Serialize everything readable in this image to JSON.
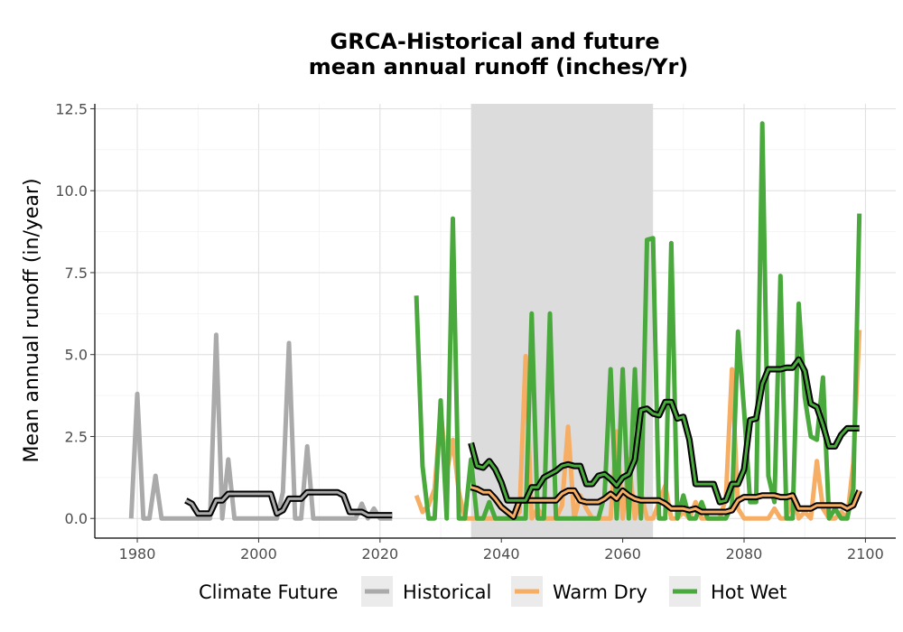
{
  "chart_data": {
    "type": "line",
    "title_line1": "GRCA-Historical and future",
    "title_line2": "mean annual runoff (inches/Yr)",
    "xlabel": "",
    "ylabel": "Mean annual runoff (in/year)",
    "xlim": [
      1973,
      2105
    ],
    "ylim": [
      -0.6,
      12.65
    ],
    "x_ticks": [
      1980,
      2000,
      2020,
      2040,
      2060,
      2080,
      2100
    ],
    "y_ticks": [
      0,
      2.5,
      5,
      7.5,
      10,
      12.5
    ],
    "y_tick_labels": [
      "0.0",
      "2.5",
      "5.0",
      "7.5",
      "10.0",
      "12.5"
    ],
    "grid": true,
    "shaded_period": [
      2035,
      2065
    ],
    "legend": {
      "title": "Climate Future",
      "position": "bottom",
      "entries": [
        {
          "label": "Historical",
          "color": "#aaaaaa"
        },
        {
          "label": "Warm Dry",
          "color": "#f6ad64"
        },
        {
          "label": "Hot Wet",
          "color": "#4aa93c"
        }
      ]
    },
    "series": [
      {
        "name": "Historical",
        "color": "#aaaaaa",
        "x": [
          1979,
          1980,
          1981,
          1982,
          1983,
          1984,
          1985,
          1986,
          1987,
          1988,
          1989,
          1990,
          1991,
          1992,
          1993,
          1994,
          1995,
          1996,
          1997,
          1998,
          1999,
          2000,
          2001,
          2002,
          2003,
          2004,
          2005,
          2006,
          2007,
          2008,
          2009,
          2010,
          2011,
          2012,
          2013,
          2014,
          2015,
          2016,
          2017,
          2018,
          2019,
          2020,
          2021,
          2022
        ],
        "y": [
          0,
          3.8,
          0,
          0,
          1.3,
          0,
          0,
          0,
          0,
          0,
          0,
          0,
          0,
          0,
          5.6,
          0,
          1.8,
          0,
          0,
          0,
          0,
          0,
          0,
          0,
          0,
          0.8,
          5.35,
          0,
          0,
          2.2,
          0,
          0,
          0,
          0,
          0,
          0,
          0,
          0,
          0.45,
          0,
          0.3,
          0,
          0,
          0
        ]
      },
      {
        "name": "Warm Dry",
        "color": "#f6ad64",
        "x": [
          2026,
          2027,
          2028,
          2029,
          2030,
          2031,
          2032,
          2033,
          2034,
          2035,
          2036,
          2037,
          2038,
          2039,
          2040,
          2041,
          2042,
          2043,
          2044,
          2045,
          2046,
          2047,
          2048,
          2049,
          2050,
          2051,
          2052,
          2053,
          2054,
          2055,
          2056,
          2057,
          2058,
          2059,
          2060,
          2061,
          2062,
          2063,
          2064,
          2065,
          2066,
          2067,
          2068,
          2069,
          2070,
          2071,
          2072,
          2073,
          2074,
          2075,
          2076,
          2077,
          2078,
          2079,
          2080,
          2081,
          2082,
          2083,
          2084,
          2085,
          2086,
          2087,
          2088,
          2089,
          2090,
          2091,
          2092,
          2093,
          2094,
          2095,
          2096,
          2097,
          2098,
          2099
        ],
        "y": [
          0.7,
          0.2,
          0.4,
          0.9,
          3.3,
          1.4,
          2.4,
          0.8,
          0,
          0,
          0,
          0,
          0,
          0,
          0,
          0,
          0,
          0.2,
          4.95,
          0,
          0.3,
          0,
          0,
          0,
          0.4,
          2.8,
          0,
          0.7,
          0.3,
          0,
          0,
          0,
          0,
          2.65,
          0,
          1.8,
          0,
          0.8,
          0,
          0,
          0.5,
          1.0,
          0,
          0,
          0.2,
          0,
          0.5,
          0,
          0,
          0,
          0,
          0.6,
          4.55,
          0.3,
          0,
          0,
          0,
          0,
          0,
          0.3,
          0,
          0,
          0.8,
          0,
          0.2,
          0,
          1.75,
          0.3,
          0,
          0,
          0.2,
          0,
          1.7,
          5.75
        ]
      },
      {
        "name": "Hot Wet",
        "color": "#4aa93c",
        "x": [
          2026,
          2027,
          2028,
          2029,
          2030,
          2031,
          2032,
          2033,
          2034,
          2035,
          2036,
          2037,
          2038,
          2039,
          2040,
          2041,
          2042,
          2043,
          2044,
          2045,
          2046,
          2047,
          2048,
          2049,
          2050,
          2051,
          2052,
          2053,
          2054,
          2055,
          2056,
          2057,
          2058,
          2059,
          2060,
          2061,
          2062,
          2063,
          2064,
          2065,
          2066,
          2067,
          2068,
          2069,
          2070,
          2071,
          2072,
          2073,
          2074,
          2075,
          2076,
          2077,
          2078,
          2079,
          2080,
          2081,
          2082,
          2083,
          2084,
          2085,
          2086,
          2087,
          2088,
          2089,
          2090,
          2091,
          2092,
          2093,
          2094,
          2095,
          2096,
          2097,
          2098,
          2099
        ],
        "y": [
          6.8,
          1.6,
          0,
          0,
          3.6,
          0,
          9.15,
          0,
          0,
          1.8,
          0,
          0,
          0.5,
          0,
          0,
          0,
          0,
          0,
          0,
          6.25,
          0,
          0,
          6.25,
          0,
          0,
          0,
          0,
          0,
          0,
          0,
          0,
          0.7,
          4.55,
          0,
          4.55,
          0,
          4.55,
          0,
          8.5,
          8.55,
          0,
          0,
          8.4,
          0,
          0.7,
          0,
          0,
          0.5,
          0,
          0,
          0,
          0,
          0.4,
          5.7,
          3.3,
          0.5,
          0.5,
          12.05,
          1.3,
          0.5,
          7.4,
          0,
          0,
          6.55,
          3.7,
          2.5,
          2.4,
          4.3,
          0,
          0.3,
          0,
          0,
          0.9,
          9.3
        ]
      },
      {
        "name": "",
        "color": "#aaaaaa",
        "x": [
          1988,
          1989,
          1990,
          1991,
          1992,
          1993,
          1994,
          1995,
          1996,
          1997,
          1998,
          1999,
          2000,
          2001,
          2002,
          2003,
          2004,
          2005,
          2006,
          2007,
          2008,
          2009,
          2010,
          2011,
          2012,
          2013,
          2014,
          2015,
          2016,
          2017,
          2018,
          2019,
          2020,
          2021,
          2022
        ],
        "y": [
          0.55,
          0.45,
          0.15,
          0.15,
          0.15,
          0.55,
          0.55,
          0.75,
          0.75,
          0.75,
          0.75,
          0.75,
          0.75,
          0.75,
          0.75,
          0.15,
          0.25,
          0.6,
          0.6,
          0.6,
          0.8,
          0.8,
          0.8,
          0.8,
          0.8,
          0.8,
          0.7,
          0.2,
          0.2,
          0.2,
          0.1,
          0.1,
          0.1,
          0.1,
          0.1
        ]
      },
      {
        "name": "",
        "color": "#f6ad64",
        "x": [
          2035,
          2036,
          2037,
          2038,
          2039,
          2040,
          2041,
          2042,
          2043,
          2044,
          2045,
          2046,
          2047,
          2048,
          2049,
          2050,
          2051,
          2052,
          2053,
          2054,
          2055,
          2056,
          2057,
          2058,
          2059,
          2060,
          2061,
          2062,
          2063,
          2064,
          2065,
          2066,
          2067,
          2068,
          2069,
          2070,
          2071,
          2072,
          2073,
          2074,
          2075,
          2076,
          2077,
          2078,
          2079,
          2080,
          2081,
          2082,
          2083,
          2084,
          2085,
          2086,
          2087,
          2088,
          2089,
          2090,
          2091,
          2092,
          2093,
          2094,
          2095,
          2096,
          2097,
          2098,
          2099
        ],
        "y": [
          0.95,
          0.9,
          0.8,
          0.8,
          0.6,
          0.35,
          0.2,
          0.05,
          0.55,
          0.55,
          0.55,
          0.55,
          0.55,
          0.55,
          0.55,
          0.75,
          0.85,
          0.85,
          0.55,
          0.5,
          0.5,
          0.5,
          0.6,
          0.75,
          0.6,
          0.85,
          0.7,
          0.6,
          0.55,
          0.55,
          0.55,
          0.55,
          0.45,
          0.3,
          0.3,
          0.3,
          0.25,
          0.3,
          0.2,
          0.2,
          0.2,
          0.2,
          0.2,
          0.25,
          0.55,
          0.65,
          0.65,
          0.65,
          0.7,
          0.7,
          0.7,
          0.65,
          0.65,
          0.7,
          0.3,
          0.3,
          0.3,
          0.4,
          0.4,
          0.4,
          0.4,
          0.4,
          0.3,
          0.4,
          0.85
        ]
      },
      {
        "name": "",
        "color": "#4aa93c",
        "x": [
          2035,
          2036,
          2037,
          2038,
          2039,
          2040,
          2041,
          2042,
          2043,
          2044,
          2045,
          2046,
          2047,
          2048,
          2049,
          2050,
          2051,
          2052,
          2053,
          2054,
          2055,
          2056,
          2057,
          2058,
          2059,
          2060,
          2061,
          2062,
          2063,
          2064,
          2065,
          2066,
          2067,
          2068,
          2069,
          2070,
          2071,
          2072,
          2073,
          2074,
          2075,
          2076,
          2077,
          2078,
          2079,
          2080,
          2081,
          2082,
          2083,
          2084,
          2085,
          2086,
          2087,
          2088,
          2089,
          2090,
          2091,
          2092,
          2093,
          2094,
          2095,
          2096,
          2097,
          2098,
          2099
        ],
        "y": [
          2.3,
          1.6,
          1.55,
          1.75,
          1.5,
          1.1,
          0.55,
          0.55,
          0.55,
          0.55,
          0.95,
          0.95,
          1.25,
          1.35,
          1.45,
          1.6,
          1.65,
          1.6,
          1.6,
          1.05,
          1.05,
          1.3,
          1.35,
          1.2,
          1.0,
          1.25,
          1.35,
          1.8,
          3.3,
          3.35,
          3.2,
          3.15,
          3.55,
          3.55,
          3.05,
          3.1,
          2.4,
          1.05,
          1.05,
          1.05,
          1.05,
          0.5,
          0.55,
          1.05,
          1.05,
          1.5,
          3.0,
          3.05,
          4.1,
          4.55,
          4.55,
          4.55,
          4.6,
          4.6,
          4.85,
          4.5,
          3.5,
          3.4,
          2.85,
          2.2,
          2.2,
          2.55,
          2.75,
          2.75,
          2.75
        ]
      }
    ]
  }
}
